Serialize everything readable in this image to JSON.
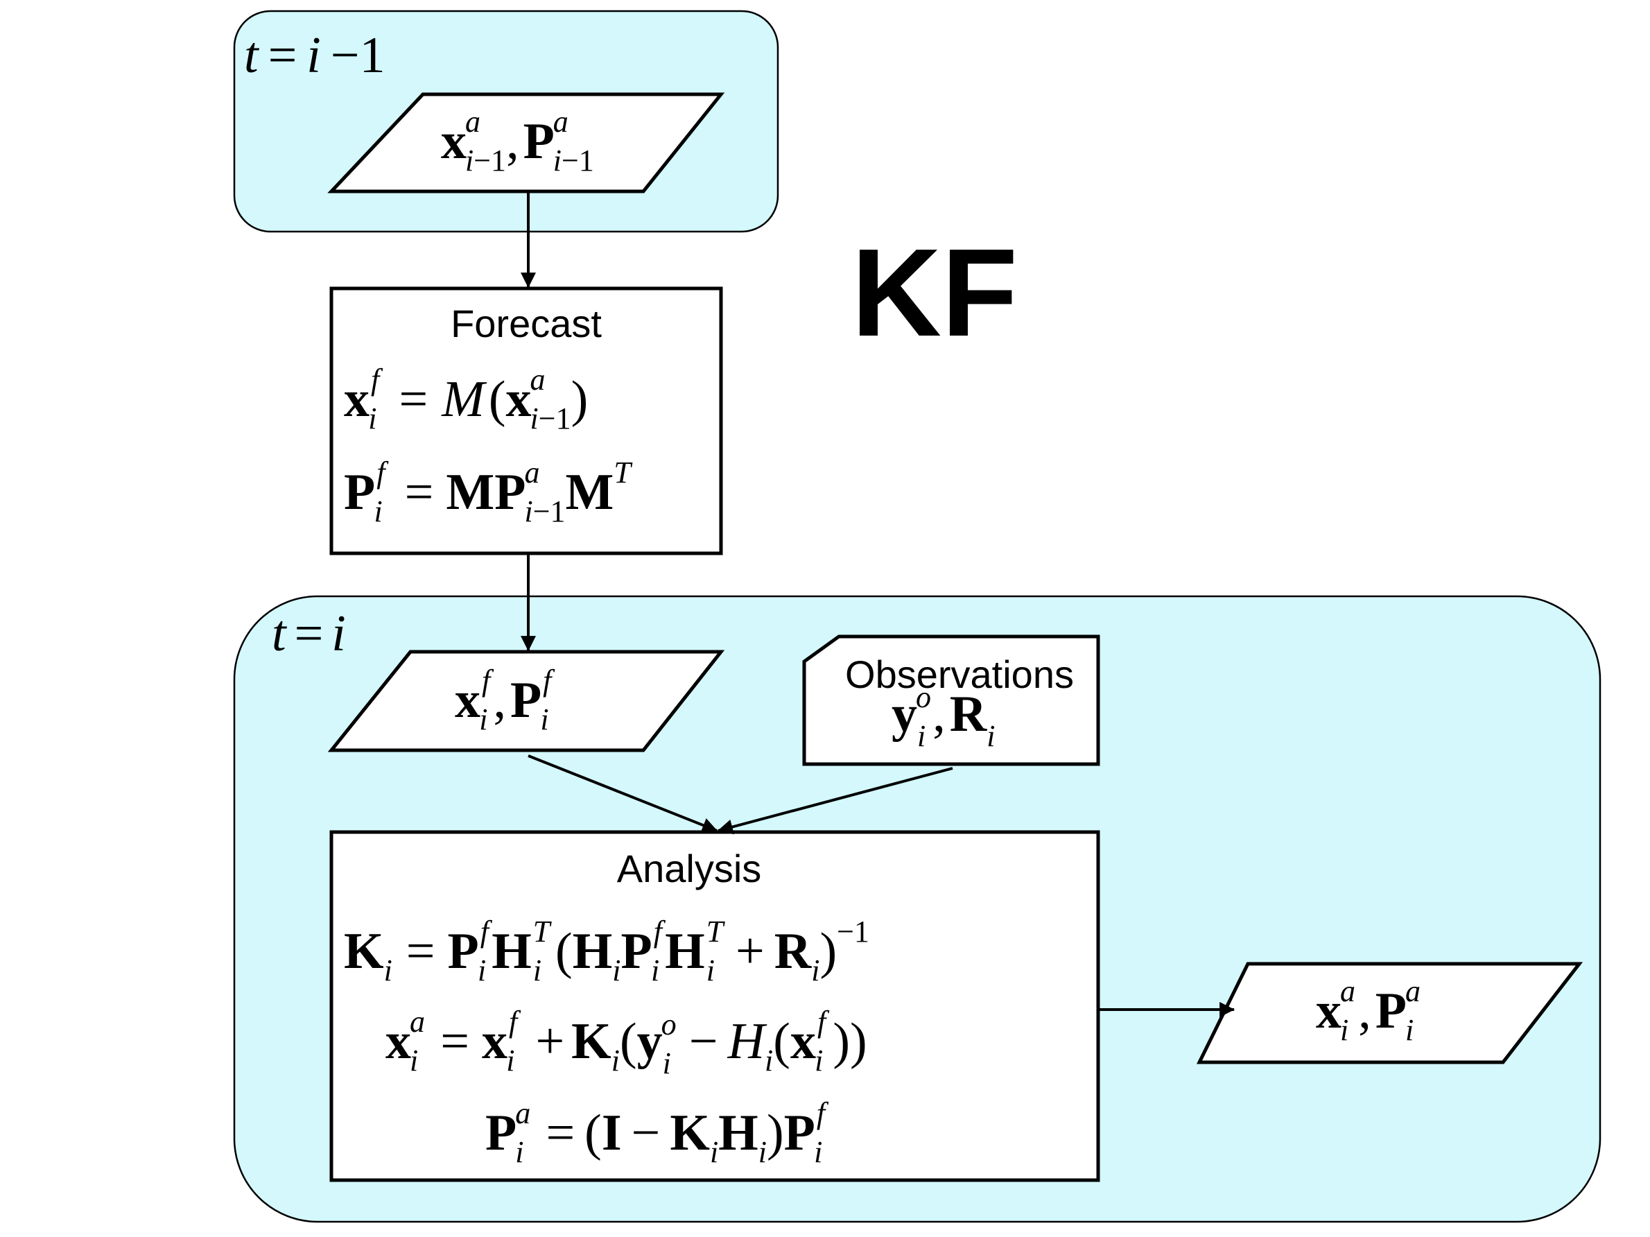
{
  "diagram": {
    "title": "KF",
    "colors": {
      "region_fill": "#d4f8fc",
      "stroke": "#000000",
      "box_fill": "#ffffff"
    },
    "regions": {
      "previous": {
        "time_label": "t = i − 1"
      },
      "current": {
        "time_label": "t = i"
      }
    },
    "nodes": {
      "prev_state": {
        "shape": "parallelogram",
        "expression": "x^a_{i−1}, P^a_{i−1}"
      },
      "forecast": {
        "shape": "rectangle",
        "heading": "Forecast",
        "equations": [
          "x^f_i = M(x^a_{i−1})",
          "P^f_i = M P^a_{i−1} M^T"
        ]
      },
      "forecast_state": {
        "shape": "parallelogram",
        "expression": "x^f_i, P^f_i"
      },
      "observations": {
        "shape": "card",
        "heading": "Observations",
        "expression": "y^o_i, R_i"
      },
      "analysis": {
        "shape": "rectangle",
        "heading": "Analysis",
        "equations": [
          "K_i = P^f_i H_i^T (H_i P^f_i H_i^T + R_i)^{−1}",
          "x^a_i = x^f_i + K_i(y^o_i − H_i(x^f_i))",
          "P^a_i = (I − K_i H_i) P^f_i"
        ]
      },
      "analysis_state": {
        "shape": "parallelogram",
        "expression": "x^a_i, P^a_i"
      }
    },
    "edges": [
      {
        "from": "prev_state",
        "to": "forecast"
      },
      {
        "from": "forecast",
        "to": "forecast_state"
      },
      {
        "from": "forecast_state",
        "to": "analysis"
      },
      {
        "from": "observations",
        "to": "analysis"
      },
      {
        "from": "analysis",
        "to": "analysis_state"
      }
    ]
  }
}
